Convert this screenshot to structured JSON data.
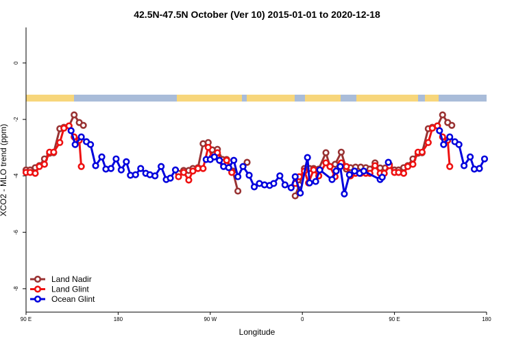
{
  "chart_data": {
    "type": "line",
    "title": "42.5N-47.5N October (Ver 10)   2015-01-01 to 2020-12-18",
    "x_label": "Longitude",
    "y_label": "XCO2 - MLO trend (ppm)",
    "xlim": [
      90,
      540
    ],
    "ylim": [
      -8.83,
      1.26
    ],
    "xticks": [
      {
        "value": 90,
        "label": "90 E"
      },
      {
        "value": 180,
        "label": "180"
      },
      {
        "value": 270,
        "label": "90 W"
      },
      {
        "value": 360,
        "label": "0"
      },
      {
        "value": 450,
        "label": "90 E"
      },
      {
        "value": 540,
        "label": "180"
      }
    ],
    "yticks": [
      0,
      -2,
      -4,
      -6,
      -8
    ],
    "legend": "bottom-left",
    "series": [
      {
        "name": "Land Nadir",
        "color": "#993333",
        "x": [
          90,
          94,
          99,
          103,
          108,
          113,
          117,
          123,
          127,
          132,
          137,
          142,
          146,
          null,
          239,
          244,
          249,
          253,
          258,
          263,
          268,
          272,
          277,
          282,
          286,
          292,
          297,
          null,
          306,
          null,
          353,
          357,
          362,
          367,
          371,
          376,
          383,
          387,
          392,
          398,
          403,
          407,
          412,
          417,
          422,
          426,
          431,
          436,
          441,
          445,
          450,
          454,
          459,
          463,
          468,
          473,
          477,
          483,
          487,
          492,
          497,
          502,
          506
        ],
        "values": [
          -3.79,
          -3.79,
          -3.71,
          -3.64,
          -3.4,
          -3.2,
          -3.18,
          -2.33,
          -2.28,
          -2.23,
          -1.84,
          -2.11,
          -2.21,
          null,
          -3.91,
          -3.81,
          -3.81,
          -3.74,
          -3.71,
          -2.86,
          -2.82,
          -3.08,
          -3.06,
          -3.42,
          -3.42,
          -3.83,
          -4.54,
          null,
          -3.52,
          null,
          -4.71,
          -4.32,
          -3.74,
          -3.74,
          -3.74,
          -3.76,
          -3.18,
          -3.67,
          -3.59,
          -3.16,
          -3.76,
          -3.71,
          -3.69,
          -3.69,
          -3.71,
          -3.76,
          -3.54,
          -3.72,
          -3.72,
          -3.6,
          -3.79,
          -3.79,
          -3.71,
          -3.64,
          -3.4,
          -3.2,
          -3.18,
          -2.33,
          -2.28,
          -2.23,
          -1.84,
          -2.11,
          -2.21
        ]
      },
      {
        "name": "Land Glint",
        "color": "#ee1111",
        "x": [
          90,
          94,
          99,
          103,
          108,
          113,
          117,
          123,
          127,
          132,
          137,
          142,
          144,
          null,
          239,
          244,
          249,
          253,
          258,
          263,
          268,
          272,
          277,
          282,
          286,
          291,
          null,
          353,
          357,
          362,
          366,
          371,
          376,
          383,
          387,
          392,
          398,
          403,
          407,
          412,
          417,
          422,
          426,
          431,
          436,
          440,
          445,
          450,
          454,
          459,
          463,
          468,
          473,
          477,
          483,
          487,
          492,
          497,
          502,
          504
        ],
        "values": [
          -3.88,
          -3.88,
          -3.91,
          -3.67,
          -3.59,
          -3.16,
          -3.16,
          -2.82,
          -2.31,
          -2.23,
          -2.62,
          -2.74,
          -3.67,
          null,
          -4.03,
          -3.88,
          -4.15,
          -3.83,
          -3.74,
          -3.74,
          -2.99,
          -3.33,
          -3.18,
          -3.52,
          -3.45,
          -3.88,
          null,
          -4.27,
          -4.03,
          -3.83,
          -4.25,
          -3.79,
          -4.0,
          -3.54,
          -3.67,
          -4.03,
          -3.54,
          -3.67,
          -4.0,
          -3.91,
          -3.91,
          -3.91,
          -3.91,
          -3.64,
          -3.91,
          -3.91,
          -3.64,
          -3.88,
          -3.88,
          -3.91,
          -3.67,
          -3.59,
          -3.16,
          -3.16,
          -2.82,
          -2.31,
          -2.23,
          -2.62,
          -2.74,
          -3.67
        ]
      },
      {
        "name": "Ocean Glint",
        "color": "#0000dd",
        "x": [
          134,
          138,
          144,
          149,
          153,
          158,
          164,
          168,
          173,
          178,
          183,
          188,
          192,
          197,
          202,
          207,
          211,
          216,
          222,
          227,
          231,
          236,
          null,
          266,
          270,
          274,
          279,
          283,
          288,
          293,
          297,
          302,
          308,
          313,
          318,
          323,
          328,
          332,
          338,
          343,
          349,
          353,
          358,
          365,
          367,
          373,
          377,
          389,
          393,
          397,
          401,
          406,
          411,
          416,
          420,
          436,
          438,
          null,
          444,
          null,
          494,
          498,
          504,
          509,
          513,
          518,
          524,
          528,
          533,
          538
        ],
        "values": [
          -2.4,
          -2.89,
          -2.62,
          -2.79,
          -2.89,
          -3.64,
          -3.33,
          -3.76,
          -3.74,
          -3.4,
          -3.79,
          -3.5,
          -3.98,
          -3.96,
          -3.74,
          -3.91,
          -3.96,
          -4.0,
          -3.67,
          -4.13,
          -4.08,
          -3.79,
          null,
          -3.42,
          -3.42,
          -3.33,
          -3.45,
          -3.67,
          -3.71,
          -3.45,
          -4.03,
          -3.67,
          -3.98,
          -4.39,
          -4.27,
          -4.32,
          -4.34,
          -4.27,
          -4.0,
          -4.32,
          -4.42,
          -4.03,
          -4.61,
          -3.35,
          -4.25,
          -4.2,
          -3.79,
          -4.13,
          -3.83,
          -3.67,
          -4.64,
          -3.96,
          -3.83,
          -3.91,
          -3.83,
          -4.13,
          -4.05,
          null,
          -3.52,
          null,
          -2.4,
          -2.89,
          -2.62,
          -2.79,
          -2.89,
          -3.64,
          -3.33,
          -3.76,
          -3.74,
          -3.4
        ]
      }
    ]
  }
}
